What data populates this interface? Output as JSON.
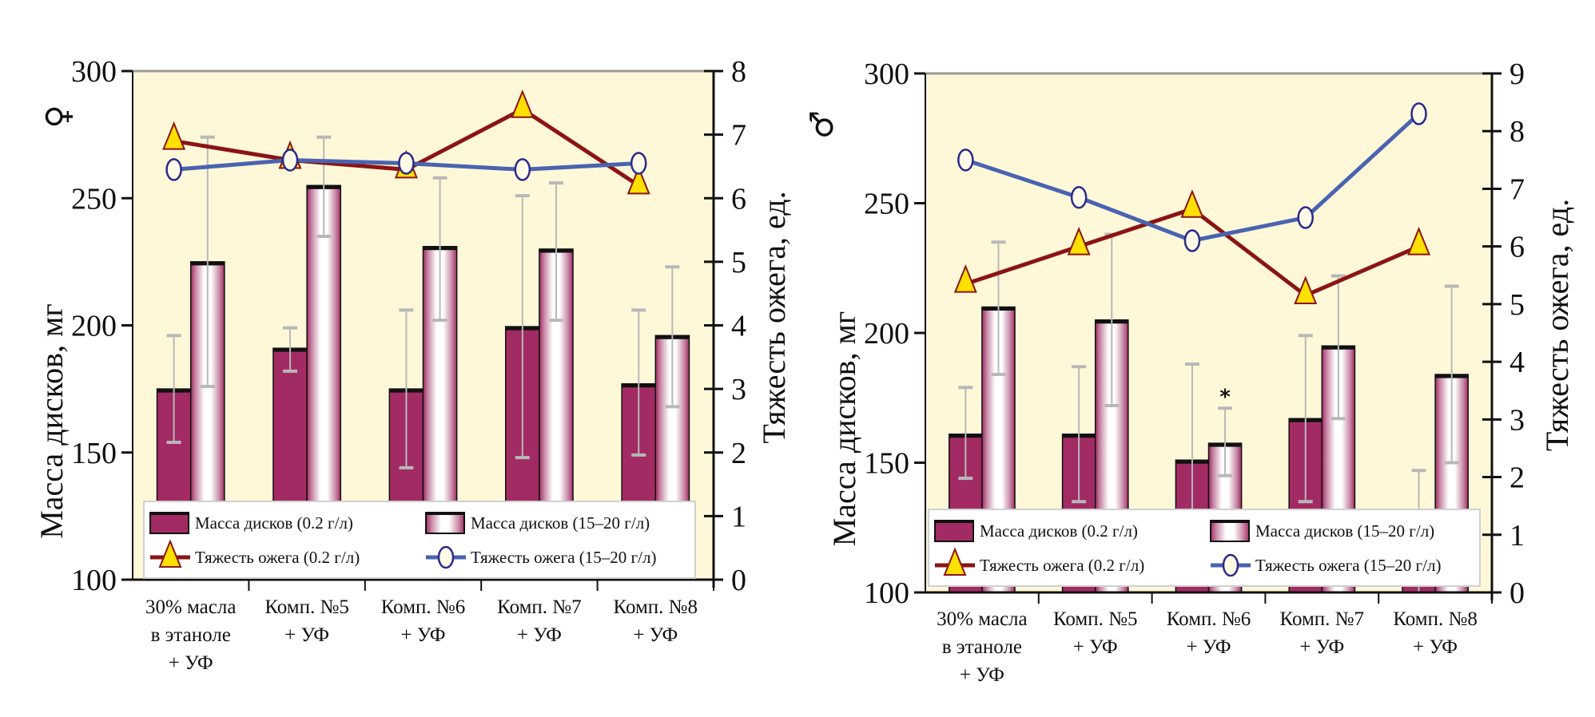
{
  "colors": {
    "plot_bg": "#fef8d8",
    "bar_dark": "#a32b63",
    "bar_light_edge": "#a32b63",
    "bar_light_center": "#ffffff",
    "line_low": "#8b1414",
    "line_high": "#4a63b0",
    "marker_triangle_fill": "#ffe000",
    "marker_circle_edge": "#2a2a8a",
    "marker_circle_fill": "#fffbe6",
    "error_bar": "#b8b8b8"
  },
  "chart_data": [
    {
      "id": "female",
      "type": "bar+line",
      "title": "",
      "sex_symbol": "♀",
      "ylabel": "Масса дисков, мг",
      "y2label": "Тяжесть ожега, ед.",
      "ylim": [
        100,
        300
      ],
      "yticks": [
        "100",
        "150",
        "200",
        "250",
        "300"
      ],
      "y2lim": [
        0,
        8
      ],
      "y2ticks": [
        "0",
        "1",
        "2",
        "3",
        "4",
        "5",
        "6",
        "7",
        "8"
      ],
      "categories": [
        [
          "30% масла",
          "в этаноле",
          "+ УФ"
        ],
        [
          "Комп. №5",
          "+ УФ"
        ],
        [
          "Комп. №6",
          "+ УФ"
        ],
        [
          "Комп. №7",
          "+ УФ"
        ],
        [
          "Комп. №8",
          "+ УФ"
        ]
      ],
      "bar_series": [
        {
          "name": "Масса дисков (0.2 г/л)",
          "style": "dark",
          "values": [
            175,
            191,
            175,
            199.5,
            177
          ],
          "err_low": [
            154,
            182,
            144,
            148,
            149
          ],
          "err_high": [
            196,
            199,
            206,
            251,
            206
          ]
        },
        {
          "name": "Масса дисков (15–20 г/л)",
          "style": "light",
          "values": [
            225,
            255,
            231,
            230,
            196
          ],
          "err_low": [
            176,
            235,
            202,
            202,
            168
          ],
          "err_high": [
            274,
            274,
            258,
            256,
            223
          ]
        }
      ],
      "line_series": [
        {
          "name": "Тяжесть ожега (0.2 г/л)",
          "style": "triangle",
          "axis": "y2",
          "values": [
            6.9,
            6.6,
            6.45,
            7.4,
            6.2
          ]
        },
        {
          "name": "Тяжесть ожега (15–20 г/л)",
          "style": "circle",
          "axis": "y2",
          "values": [
            6.45,
            6.6,
            6.55,
            6.45,
            6.55
          ]
        }
      ],
      "annotations": [],
      "legend": "bottom-inside"
    },
    {
      "id": "male",
      "type": "bar+line",
      "title": "",
      "sex_symbol": "♂",
      "ylabel": "Масса дисков, мг",
      "y2label": "Тяжесть ожега, ед.",
      "ylim": [
        100,
        300
      ],
      "yticks": [
        "100",
        "150",
        "200",
        "250",
        "300"
      ],
      "y2lim": [
        0,
        9
      ],
      "y2ticks": [
        "0",
        "1",
        "2",
        "3",
        "4",
        "5",
        "6",
        "7",
        "8",
        "9"
      ],
      "categories": [
        [
          "30% масла",
          "в этаноле",
          "+ УФ"
        ],
        [
          "Комп. №5",
          "+ УФ"
        ],
        [
          "Комп. №6",
          "+ УФ"
        ],
        [
          "Комп. №7",
          "+ УФ"
        ],
        [
          "Комп. №8",
          "+ УФ"
        ]
      ],
      "bar_series": [
        {
          "name": "Масса дисков (0.2 г/л)",
          "style": "dark",
          "values": [
            161,
            161,
            151,
            167,
            120
          ],
          "err_low": [
            144,
            135,
            114,
            135,
            93
          ],
          "err_high": [
            179,
            187,
            188,
            199,
            147
          ]
        },
        {
          "name": "Масса дисков (15–20 г/л)",
          "style": "light",
          "values": [
            210,
            205,
            157.5,
            195,
            184
          ],
          "err_low": [
            184,
            172,
            145,
            167,
            150
          ],
          "err_high": [
            235,
            238,
            171,
            222,
            218
          ]
        }
      ],
      "line_series": [
        {
          "name": "Тяжесть ожега (0.2 г/л)",
          "style": "triangle",
          "axis": "y2",
          "values": [
            5.35,
            6.0,
            6.65,
            5.15,
            6.0
          ]
        },
        {
          "name": "Тяжесть ожега (15–20 г/л)",
          "style": "circle",
          "axis": "y2",
          "values": [
            7.5,
            6.85,
            6.1,
            6.5,
            8.3
          ]
        }
      ],
      "annotations": [
        {
          "text": "*",
          "category_index": 2,
          "series": "Масса дисков (15–20 г/л)"
        }
      ],
      "legend": "bottom-inside"
    }
  ]
}
